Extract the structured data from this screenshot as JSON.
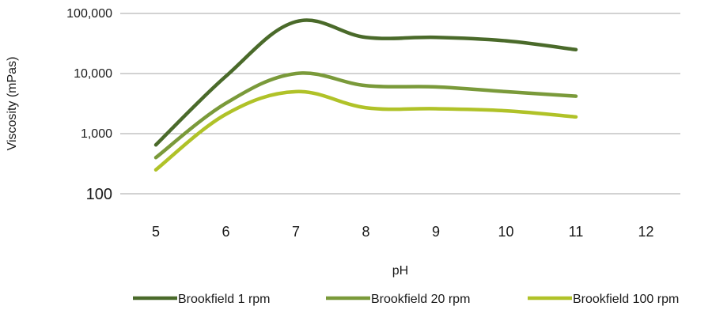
{
  "chart_data": {
    "type": "line",
    "title": "",
    "xlabel": "pH",
    "ylabel": "Viscosity (mPas)",
    "y_scale": "log",
    "ylim": [
      100,
      100000
    ],
    "xlim": [
      5,
      12
    ],
    "y_ticks": [
      "100,000",
      "10,000",
      "1,000",
      "100"
    ],
    "x_ticks": [
      "5",
      "6",
      "7",
      "8",
      "9",
      "10",
      "11",
      "12"
    ],
    "grid": "horizontal",
    "legend_position": "bottom",
    "x": [
      5,
      6,
      7,
      8,
      9,
      10,
      11
    ],
    "series": [
      {
        "name": "Brookfield 1 rpm",
        "color": "#4a6a2a",
        "values": [
          650,
          9000,
          73000,
          40000,
          40000,
          35000,
          25000
        ]
      },
      {
        "name": "Brookfield 20 rpm",
        "color": "#7a9a3a",
        "values": [
          400,
          3200,
          10000,
          6300,
          6000,
          5000,
          4200
        ]
      },
      {
        "name": "Brookfield 100 rpm",
        "color": "#b0c228",
        "values": [
          250,
          2100,
          5000,
          2700,
          2600,
          2400,
          1900
        ]
      }
    ]
  }
}
